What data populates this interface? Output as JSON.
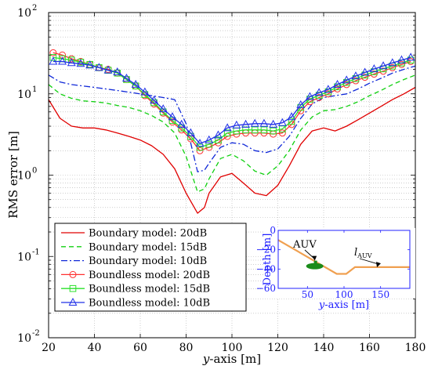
{
  "chart_data": {
    "type": "line",
    "xlabel_var": "y",
    "xlabel_rest": "-axis [m]",
    "ylabel": "RMS error [m]",
    "xlim": [
      20,
      180
    ],
    "ylim": [
      0.01,
      100
    ],
    "yscale": "log",
    "grid": true,
    "xticks": [
      20,
      40,
      60,
      80,
      100,
      120,
      140,
      160,
      180
    ],
    "xtick_labels": [
      "20",
      "40",
      "60",
      "80",
      "100",
      "120",
      "140",
      "160",
      "180"
    ],
    "ytick_labels": [
      {
        "base": "10",
        "exp": "-2"
      },
      {
        "base": "10",
        "exp": "-1"
      },
      {
        "base": "10",
        "exp": "0"
      },
      {
        "base": "10",
        "exp": "1"
      },
      {
        "base": "10",
        "exp": "2"
      }
    ],
    "legend_position": "bottom-left",
    "series": [
      {
        "name": "Boundary model: 20dB",
        "color": "#e00000",
        "dash": "",
        "marker": "none",
        "x": [
          20,
          25,
          30,
          35,
          40,
          45,
          50,
          55,
          60,
          65,
          70,
          75,
          80,
          85,
          88,
          90,
          95,
          100,
          105,
          110,
          115,
          120,
          125,
          130,
          135,
          140,
          145,
          150,
          155,
          160,
          165,
          170,
          175,
          180
        ],
        "y": [
          8.5,
          5,
          4,
          3.8,
          3.8,
          3.6,
          3.3,
          3,
          2.7,
          2.3,
          1.8,
          1.2,
          0.6,
          0.34,
          0.4,
          0.6,
          0.95,
          1.05,
          0.8,
          0.6,
          0.56,
          0.75,
          1.3,
          2.4,
          3.5,
          3.8,
          3.5,
          4,
          4.8,
          5.8,
          7,
          8.5,
          10,
          12
        ]
      },
      {
        "name": "Boundary model: 15dB",
        "color": "#10d010",
        "dash": "6,4",
        "marker": "none",
        "x": [
          20,
          25,
          30,
          35,
          40,
          45,
          50,
          55,
          60,
          65,
          70,
          75,
          80,
          85,
          88,
          90,
          95,
          100,
          105,
          110,
          115,
          120,
          125,
          130,
          135,
          140,
          145,
          150,
          155,
          160,
          165,
          170,
          175,
          180
        ],
        "y": [
          13,
          10,
          8.8,
          8.2,
          8,
          7.7,
          7.2,
          6.8,
          6.2,
          5.4,
          4.5,
          3.3,
          1.7,
          0.62,
          0.68,
          0.9,
          1.6,
          1.8,
          1.5,
          1.12,
          1,
          1.3,
          2,
          3.6,
          5.2,
          6.2,
          6.4,
          7,
          8,
          9.5,
          11,
          13,
          15,
          17
        ]
      },
      {
        "name": "Boundary model: 10dB",
        "color": "#1028d8",
        "dash": "8,3,2,3",
        "marker": "none",
        "x": [
          20,
          25,
          30,
          35,
          40,
          45,
          50,
          55,
          60,
          65,
          70,
          75,
          80,
          85,
          88,
          90,
          95,
          100,
          105,
          110,
          115,
          120,
          125,
          130,
          135,
          140,
          145,
          150,
          155,
          160,
          165,
          170,
          175,
          180
        ],
        "y": [
          17,
          14,
          13,
          12.5,
          12,
          11.5,
          11,
          10.5,
          10,
          9.5,
          9,
          8.5,
          4.3,
          1.1,
          1.15,
          1.4,
          2.2,
          2.5,
          2.4,
          2,
          1.9,
          2.1,
          3,
          5,
          7.5,
          9,
          9.5,
          10,
          11.5,
          13.5,
          15.5,
          18,
          20,
          22
        ]
      },
      {
        "name": "Boundless model: 20dB",
        "color": "#ff3030",
        "dash": "",
        "marker": "circle",
        "x": [
          22,
          26,
          30,
          34,
          38,
          42,
          46,
          50,
          54,
          58,
          62,
          66,
          70,
          74,
          78,
          82,
          86,
          90,
          94,
          98,
          102,
          106,
          110,
          114,
          118,
          122,
          126,
          130,
          134,
          138,
          142,
          146,
          150,
          154,
          158,
          162,
          166,
          170,
          174,
          178
        ],
        "y": [
          32,
          30,
          27,
          25,
          23,
          21,
          20,
          18,
          15,
          12.5,
          9.5,
          7.5,
          5.8,
          4.5,
          3.6,
          2.8,
          2.0,
          2.2,
          2.5,
          3.0,
          3.2,
          3.3,
          3.3,
          3.3,
          3.2,
          3.3,
          4.2,
          6.2,
          8,
          9,
          10,
          11.5,
          13,
          14.5,
          16,
          17.5,
          19,
          21,
          23,
          25
        ]
      },
      {
        "name": "Boundless model: 15dB",
        "color": "#2ae02a",
        "dash": "",
        "marker": "square",
        "x": [
          22,
          26,
          30,
          34,
          38,
          42,
          46,
          50,
          54,
          58,
          62,
          66,
          70,
          74,
          78,
          82,
          86,
          90,
          94,
          98,
          102,
          106,
          110,
          114,
          118,
          122,
          126,
          130,
          134,
          138,
          142,
          146,
          150,
          154,
          158,
          162,
          166,
          170,
          174,
          178
        ],
        "y": [
          28,
          27,
          26,
          24.5,
          23,
          21,
          19.5,
          18,
          15,
          12.5,
          9.8,
          7.8,
          6,
          4.7,
          3.8,
          3,
          2.2,
          2.4,
          2.7,
          3.3,
          3.5,
          3.6,
          3.6,
          3.6,
          3.5,
          3.7,
          4.6,
          6.8,
          8.6,
          9.6,
          10.6,
          12.2,
          13.8,
          15.4,
          17,
          18.7,
          20.3,
          22,
          24,
          26
        ]
      },
      {
        "name": "Boundless model: 10dB",
        "color": "#2030e8",
        "dash": "",
        "marker": "triangle",
        "x": [
          22,
          26,
          30,
          34,
          38,
          42,
          46,
          50,
          54,
          58,
          62,
          66,
          70,
          74,
          78,
          82,
          86,
          90,
          94,
          98,
          102,
          106,
          110,
          114,
          118,
          122,
          126,
          130,
          134,
          138,
          142,
          146,
          150,
          154,
          158,
          162,
          166,
          170,
          174,
          178
        ],
        "y": [
          25,
          25,
          24,
          23.5,
          22.5,
          21,
          19.5,
          18.5,
          15.5,
          13,
          10.5,
          8.3,
          6.5,
          5.2,
          4.2,
          3.3,
          2.45,
          2.7,
          3.1,
          3.8,
          4.1,
          4.2,
          4.3,
          4.3,
          4.2,
          4.4,
          5.2,
          7.3,
          9.2,
          10.3,
          11.3,
          13,
          14.7,
          16.5,
          18.3,
          20.2,
          22,
          24,
          26,
          28
        ]
      }
    ],
    "inset": {
      "xlabel_var": "y",
      "xlabel_rest": "-axis [m]",
      "ylabel": "Depth [m]",
      "xlim": [
        10,
        190
      ],
      "ylim": [
        -60,
        0
      ],
      "xticks": [
        50,
        100,
        150
      ],
      "xtick_labels": [
        "50",
        "100",
        "150"
      ],
      "yticks": [
        0,
        -20,
        -40,
        -60
      ],
      "ytick_labels": [
        "0",
        "−20",
        "−40",
        "−60"
      ],
      "profile_color": "#f0a050",
      "profile_x": [
        10,
        90,
        103,
        115,
        190
      ],
      "profile_y": [
        -10,
        -45,
        -45,
        -38,
        -38
      ],
      "auv_label": "AUV",
      "auv_position": [
        60,
        -37
      ],
      "auv_color": "#1a8c1a",
      "l_label_main": "l",
      "l_label_sub": "AUV",
      "l_point": [
        145,
        -39
      ],
      "color": "#2020ff"
    }
  }
}
